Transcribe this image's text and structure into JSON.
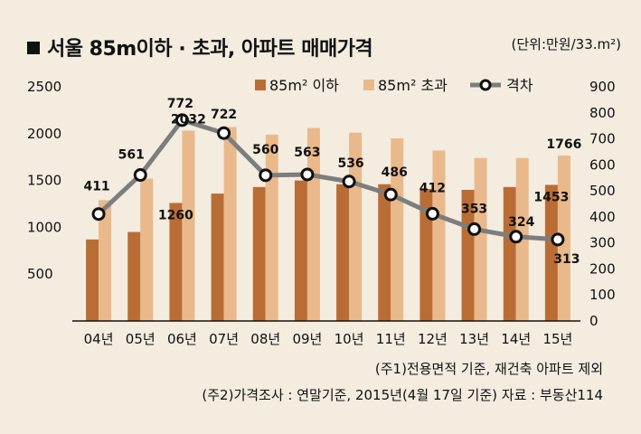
{
  "title": "서울 85m이하 · 초과, 아파트 매매가격",
  "unit": "(단위:만원/33.m²)",
  "legend": {
    "small": "85m² 이하",
    "large": "85m² 초과",
    "gap": "격차"
  },
  "notes": [
    "(주1)전용면적 기준, 재건축 아파트 제외",
    "(주2)가격조사 : 연말기준, 2015년(4월 17일 기준) 자료 : 부동산114"
  ],
  "colors": {
    "small": "#b96d35",
    "large": "#e9b98b",
    "line": "#7d7d7d",
    "bg": "#f3ecdf"
  },
  "chart_data": {
    "type": "bar",
    "categories": [
      "04년",
      "05년",
      "06년",
      "07년",
      "08년",
      "09년",
      "10년",
      "11년",
      "12년",
      "13년",
      "14년",
      "15년"
    ],
    "series": [
      {
        "name": "85m² 이하",
        "type": "bar",
        "axis": "left",
        "values": [
          870,
          950,
          1260,
          1360,
          1430,
          1500,
          1460,
          1460,
          1410,
          1400,
          1430,
          1453
        ]
      },
      {
        "name": "85m² 초과",
        "type": "bar",
        "axis": "left",
        "values": [
          1290,
          1520,
          2032,
          2070,
          1990,
          2060,
          2010,
          1950,
          1820,
          1740,
          1740,
          1766
        ]
      },
      {
        "name": "격차",
        "type": "line",
        "axis": "right",
        "values": [
          411,
          561,
          772,
          722,
          560,
          563,
          536,
          486,
          412,
          353,
          324,
          313
        ]
      }
    ],
    "bar_labels": [
      {
        "series": 1,
        "index": 2,
        "text": "2032"
      },
      {
        "series": 0,
        "index": 2,
        "text": "1260"
      },
      {
        "series": 1,
        "index": 11,
        "text": "1766"
      },
      {
        "series": 0,
        "index": 11,
        "text": "1453"
      }
    ],
    "yleft_ticks": [
      "2500",
      "2000",
      "1500",
      "1000",
      "500"
    ],
    "yleft_lim": [
      0,
      2500
    ],
    "yright_ticks": [
      "900",
      "800",
      "700",
      "600",
      "500",
      "400",
      "300",
      "200",
      "100",
      "0"
    ],
    "yright_lim": [
      0,
      900
    ],
    "grid": false,
    "legend_position": "top"
  }
}
